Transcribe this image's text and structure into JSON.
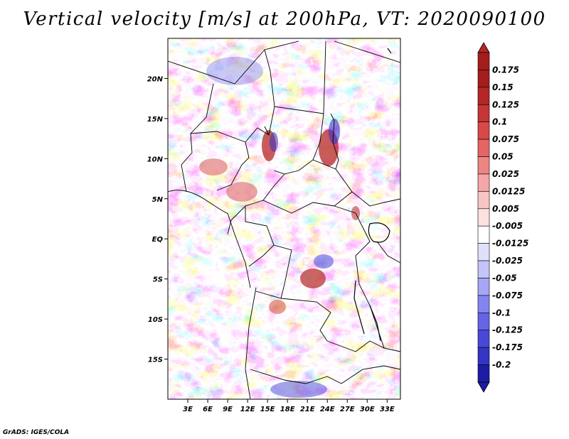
{
  "title": "Vertical velocity [m/s] at 200hPa, VT: 2020090100",
  "credit": "GrADS: IGES/COLA",
  "colors": {
    "strong_up": "#a51c1c",
    "up": "#f08a8a",
    "down": "#8a8af0",
    "strong_down": "#1c1ca5",
    "border": "#000000"
  },
  "map": {
    "lon_range": [
      0,
      35
    ],
    "lat_range": [
      -20,
      25
    ],
    "lon_ticks": [
      {
        "value": 3,
        "label": "3E"
      },
      {
        "value": 6,
        "label": "6E"
      },
      {
        "value": 9,
        "label": "9E"
      },
      {
        "value": 12,
        "label": "12E"
      },
      {
        "value": 15,
        "label": "15E"
      },
      {
        "value": 18,
        "label": "18E"
      },
      {
        "value": 21,
        "label": "21E"
      },
      {
        "value": 24,
        "label": "24E"
      },
      {
        "value": 27,
        "label": "27E"
      },
      {
        "value": 30,
        "label": "30E"
      },
      {
        "value": 33,
        "label": "33E"
      }
    ],
    "lat_ticks": [
      {
        "value": 20,
        "label": "20N"
      },
      {
        "value": 15,
        "label": "15N"
      },
      {
        "value": 10,
        "label": "10N"
      },
      {
        "value": 5,
        "label": "5N"
      },
      {
        "value": 0,
        "label": "EQ"
      },
      {
        "value": -5,
        "label": "5S"
      },
      {
        "value": -10,
        "label": "10S"
      },
      {
        "value": -15,
        "label": "15S"
      }
    ]
  },
  "colorbar": [
    {
      "label": "0.175",
      "color": "#a51c1c"
    },
    {
      "label": "0.15",
      "color": "#b52626"
    },
    {
      "label": "0.125",
      "color": "#c63434"
    },
    {
      "label": "0.1",
      "color": "#d84848"
    },
    {
      "label": "0.075",
      "color": "#e56464"
    },
    {
      "label": "0.05",
      "color": "#ee8484"
    },
    {
      "label": "0.025",
      "color": "#f5a6a6"
    },
    {
      "label": "0.0125",
      "color": "#f9c4c4"
    },
    {
      "label": "0.005",
      "color": "#fde0e0"
    },
    {
      "label": "-0.005",
      "color": "#ffffff"
    },
    {
      "label": "-0.0125",
      "color": "#e0e0fd"
    },
    {
      "label": "-0.025",
      "color": "#c4c4f9"
    },
    {
      "label": "-0.05",
      "color": "#a6a6f5"
    },
    {
      "label": "-0.075",
      "color": "#8484ee"
    },
    {
      "label": "-0.1",
      "color": "#6464e5"
    },
    {
      "label": "-0.125",
      "color": "#4848d8"
    },
    {
      "label": "-0.175",
      "color": "#3434c6"
    },
    {
      "label": "-0.2",
      "color": "#1c1ca5"
    }
  ],
  "cbar_end_colors": {
    "top": "#b52626",
    "bottom": "#1c1ca5"
  }
}
